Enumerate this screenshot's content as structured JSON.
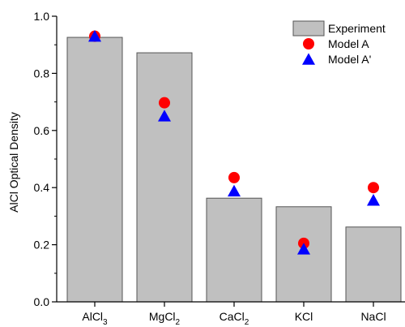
{
  "chart_data": {
    "type": "bar",
    "title": "",
    "xlabel": "",
    "ylabel": "AlCl Optical Density",
    "ylim": [
      0.0,
      1.0
    ],
    "yticks": [
      "0.0",
      "0.2",
      "0.4",
      "0.6",
      "0.8",
      "1.0"
    ],
    "categories": [
      {
        "base": "AlCl",
        "sub": "3"
      },
      {
        "base": "MgCl",
        "sub": "2"
      },
      {
        "base": "CaCl",
        "sub": "2"
      },
      {
        "base": "KCl",
        "sub": ""
      },
      {
        "base": "NaCl",
        "sub": ""
      }
    ],
    "series": [
      {
        "name": "Experiment",
        "kind": "bar",
        "color": "#c0c0c0",
        "values": [
          0.926,
          0.872,
          0.363,
          0.333,
          0.262
        ]
      },
      {
        "name": "Model A",
        "kind": "circle",
        "color": "#ff0000",
        "values": [
          0.93,
          0.697,
          0.435,
          0.205,
          0.4
        ]
      },
      {
        "name": "Model A'",
        "kind": "triangle",
        "color": "#0000ff",
        "values": [
          0.93,
          0.651,
          0.388,
          0.185,
          0.356
        ]
      }
    ],
    "legend_position": "top-right",
    "grid": false
  }
}
